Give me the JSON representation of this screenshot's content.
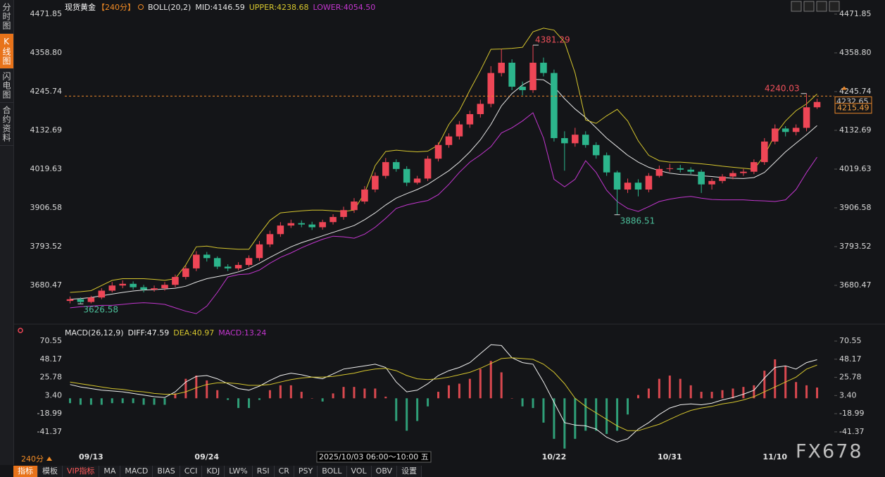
{
  "sidebar": [
    "分时图",
    "K线图",
    "闪电图",
    "合约资料"
  ],
  "toolbar": [
    "指标",
    "模板",
    "VIP指标",
    "MA",
    "MACD",
    "BIAS",
    "CCI",
    "KDJ",
    "LW%",
    "RSI",
    "CR",
    "PSY",
    "BOLL",
    "VOL",
    "OBV",
    "设置"
  ],
  "period_selector": "240分",
  "watermark": "FX678",
  "chart_data": [
    {
      "type": "candlestick",
      "title": "现货黄金",
      "period": "【240分】",
      "indicator": "BOLL(20,2)",
      "categories": [
        null,
        null,
        "09/13",
        null,
        null,
        null,
        null,
        null,
        null,
        null,
        null,
        null,
        null,
        "09/24",
        null,
        null,
        null,
        null,
        null,
        null,
        null,
        null,
        null,
        null,
        null,
        null,
        null,
        null,
        null,
        null,
        null,
        null,
        null,
        null,
        null,
        null,
        null,
        null,
        null,
        null,
        null,
        null,
        null,
        null,
        null,
        null,
        "10/22",
        null,
        null,
        null,
        null,
        null,
        null,
        null,
        null,
        null,
        null,
        "10/31",
        null,
        null,
        null,
        null,
        null,
        null,
        null,
        null,
        null,
        "11/10",
        null,
        null,
        null,
        null
      ],
      "open": [
        3635,
        3640,
        3632,
        3645,
        3665,
        3680,
        3685,
        3675,
        3668,
        3672,
        3682,
        3705,
        3730,
        3770,
        3760,
        3735,
        3730,
        3740,
        3760,
        3800,
        3830,
        3855,
        3862,
        3858,
        3850,
        3865,
        3880,
        3900,
        3925,
        3960,
        4000,
        4040,
        4020,
        3980,
        3992,
        4050,
        4090,
        4115,
        4150,
        4180,
        4210,
        4300,
        4330,
        4260,
        4250,
        4330,
        4300,
        4110,
        4095,
        4120,
        4090,
        4060,
        4010,
        3960,
        3980,
        3960,
        4000,
        4020,
        4022,
        4018,
        4012,
        3975,
        3985,
        3998,
        4008,
        4012,
        4040,
        4100,
        4138,
        4128,
        4140,
        4200
      ],
      "high": [
        3648,
        3645,
        3650,
        3672,
        3690,
        3695,
        3692,
        3682,
        3680,
        3690,
        3712,
        3738,
        3780,
        3778,
        3765,
        3742,
        3748,
        3768,
        3810,
        3840,
        3865,
        3872,
        3870,
        3866,
        3872,
        3888,
        3910,
        3935,
        3970,
        4010,
        4052,
        4048,
        4028,
        4000,
        4058,
        4098,
        4124,
        4160,
        4190,
        4222,
        4320,
        4370,
        4340,
        4275,
        4381.29,
        4345,
        4310,
        4130,
        4140,
        4130,
        4098,
        4068,
        4015,
        3992,
        3990,
        4008,
        4030,
        4035,
        4032,
        4025,
        4018,
        3992,
        4005,
        4015,
        4020,
        4048,
        4110,
        4150,
        4145,
        4150,
        4240.03,
        4225
      ],
      "low": [
        3628,
        3626.58,
        3628,
        3640,
        3660,
        3672,
        3668,
        3660,
        3662,
        3665,
        3675,
        3698,
        3722,
        3750,
        3728,
        3722,
        3724,
        3735,
        3752,
        3792,
        3822,
        3848,
        3850,
        3842,
        3843,
        3858,
        3872,
        3892,
        3918,
        3952,
        3992,
        4012,
        3970,
        3975,
        3985,
        4042,
        4082,
        4106,
        4140,
        4170,
        4200,
        4290,
        4250,
        4235,
        4242,
        4290,
        4100,
        4015,
        4085,
        4082,
        4050,
        4000,
        3886.51,
        3950,
        3940,
        3952,
        3995,
        4012,
        4010,
        4005,
        3950,
        3960,
        3978,
        3990,
        4000,
        4005,
        4032,
        4092,
        4115,
        4118,
        4130,
        4195
      ],
      "close": [
        3640,
        3632,
        3645,
        3665,
        3680,
        3685,
        3675,
        3668,
        3672,
        3682,
        3705,
        3730,
        3770,
        3760,
        3735,
        3730,
        3740,
        3760,
        3800,
        3830,
        3855,
        3862,
        3858,
        3850,
        3865,
        3880,
        3900,
        3925,
        3960,
        4000,
        4040,
        4020,
        3980,
        3992,
        4050,
        4090,
        4115,
        4150,
        4180,
        4210,
        4300,
        4330,
        4260,
        4250,
        4330,
        4300,
        4110,
        4095,
        4120,
        4090,
        4060,
        4010,
        3960,
        3980,
        3960,
        4000,
        4020,
        4022,
        4018,
        4012,
        3975,
        3985,
        3998,
        4008,
        4012,
        4040,
        4100,
        4138,
        4128,
        4140,
        4200,
        4215.49
      ],
      "up_color": "#ee4656",
      "down_color": "#2cb58c",
      "series": [
        {
          "name": "MID:4146.59",
          "color": "#e6e6e6",
          "values": [
            3640,
            3642,
            3645,
            3650,
            3655,
            3660,
            3664,
            3667,
            3668,
            3670,
            3672,
            3678,
            3690,
            3700,
            3706,
            3712,
            3720,
            3730,
            3745,
            3762,
            3778,
            3793,
            3805,
            3815,
            3825,
            3835,
            3845,
            3855,
            3872,
            3892,
            3915,
            3935,
            3948,
            3960,
            3975,
            3995,
            4015,
            4040,
            4070,
            4105,
            4150,
            4204,
            4240,
            4265,
            4282,
            4280,
            4260,
            4225,
            4195,
            4170,
            4140,
            4110,
            4085,
            4060,
            4040,
            4025,
            4015,
            4008,
            4004,
            4003,
            4000,
            3998,
            3995,
            3993,
            3992,
            3995,
            4010,
            4040,
            4070,
            4095,
            4120,
            4146.59
          ]
        },
        {
          "name": "UPPER:4238.68",
          "color": "#d6c62e",
          "values": [
            3660,
            3662,
            3665,
            3680,
            3695,
            3700,
            3700,
            3700,
            3698,
            3695,
            3700,
            3740,
            3793,
            3795,
            3790,
            3788,
            3786,
            3786,
            3830,
            3870,
            3892,
            3895,
            3898,
            3900,
            3900,
            3898,
            3896,
            3900,
            3950,
            4030,
            4071,
            4075,
            4072,
            4070,
            4072,
            4090,
            4150,
            4190,
            4250,
            4307,
            4369,
            4370,
            4372,
            4375,
            4420,
            4431,
            4425,
            4390,
            4300,
            4163,
            4153,
            4175,
            4194,
            4160,
            4102,
            4060,
            4044,
            4040,
            4040,
            4038,
            4035,
            4032,
            4028,
            4025,
            4022,
            4019,
            4060,
            4120,
            4160,
            4190,
            4210,
            4238.68
          ]
        },
        {
          "name": "LOWER:4054.50",
          "color": "#c336cf",
          "values": [
            3615,
            3618,
            3620,
            3622,
            3622,
            3625,
            3628,
            3630,
            3628,
            3625,
            3615,
            3605,
            3598,
            3620,
            3660,
            3705,
            3712,
            3714,
            3725,
            3745,
            3762,
            3775,
            3790,
            3803,
            3815,
            3824,
            3822,
            3818,
            3830,
            3850,
            3876,
            3905,
            3915,
            3922,
            3928,
            3945,
            3975,
            4010,
            4040,
            4061,
            4085,
            4125,
            4140,
            4160,
            4184,
            4110,
            3990,
            3968,
            3990,
            4044,
            4010,
            3958,
            3925,
            3905,
            3896,
            3910,
            3925,
            3932,
            3937,
            3940,
            3935,
            3931,
            3930,
            3930,
            3930,
            3928,
            3927,
            3925,
            3930,
            3960,
            4010,
            4054.5
          ]
        }
      ],
      "ylim": [
        3577.7,
        4496.5
      ],
      "yticks": [
        4471.85,
        {
          "value": 4358.8,
          "label": "4358.80"
        },
        4245.74,
        4132.69,
        4019.63,
        3906.58,
        3793.52,
        3680.47
      ],
      "grid": false,
      "price_line": 4232.65,
      "last_price": 4215.49,
      "cursor_label": "2025/10/03 06:00～10:00 五"
    },
    {
      "type": "macd",
      "title": "MACD(26,12,9)",
      "series": [
        {
          "name": "DIFF:47.59",
          "color": "#f2f2f2",
          "values": [
            17,
            14,
            12,
            10,
            9,
            8,
            6,
            4,
            2,
            1,
            8,
            20,
            27,
            28,
            24,
            18,
            12,
            10,
            15,
            22,
            28,
            31,
            29,
            26,
            24,
            30,
            36,
            38,
            40,
            42,
            38,
            20,
            8,
            10,
            18,
            28,
            34,
            38,
            44,
            55,
            66,
            65,
            50,
            44,
            42,
            20,
            -5,
            -30,
            -33,
            -34,
            -38,
            -48,
            -54,
            -50,
            -38,
            -30,
            -20,
            -12,
            -8,
            -7,
            -8,
            -6,
            -2,
            1,
            5,
            10,
            25,
            38,
            40,
            36,
            44,
            47.59
          ]
        },
        {
          "name": "DEA:40.97",
          "color": "#d6c62e",
          "values": [
            20,
            18,
            16,
            14,
            12,
            11,
            9,
            8,
            6,
            5,
            5,
            8,
            13,
            17,
            19,
            19,
            18,
            16,
            16,
            17,
            20,
            23,
            25,
            26,
            26,
            27,
            29,
            31,
            34,
            36,
            37,
            34,
            28,
            24,
            23,
            24,
            26,
            29,
            32,
            37,
            43,
            49,
            50,
            49,
            48,
            42,
            32,
            18,
            0,
            -10,
            -18,
            -26,
            -34,
            -40,
            -40,
            -36,
            -32,
            -26,
            -20,
            -15,
            -12,
            -10,
            -7,
            -5,
            -2,
            2,
            8,
            14,
            20,
            26,
            36,
            40.97
          ]
        },
        {
          "name": "MACD:13.24",
          "type": "bar",
          "color": "#c336cf",
          "up_color": "#d9484f",
          "down_color": "#2f9f78",
          "values": [
            -6,
            -8,
            -8,
            -8,
            -6,
            -6,
            -6,
            -8,
            -8,
            -8,
            6,
            24,
            28,
            22,
            10,
            -2,
            -12,
            -12,
            -2,
            10,
            16,
            16,
            8,
            0,
            -4,
            6,
            14,
            14,
            12,
            12,
            2,
            -28,
            -40,
            -28,
            -10,
            8,
            16,
            18,
            24,
            36,
            46,
            32,
            0,
            -10,
            -12,
            -30,
            -50,
            -62,
            -50,
            -40,
            -40,
            -44,
            -40,
            -20,
            4,
            12,
            24,
            28,
            24,
            16,
            8,
            8,
            10,
            12,
            14,
            16,
            34,
            48,
            40,
            20,
            16,
            13.24
          ]
        }
      ],
      "ylim": [
        -64.9,
        75.8
      ],
      "yticks": [
        70.55,
        48.17,
        25.78,
        {
          "value": 3.4,
          "label": "3.40"
        },
        -18.99,
        -41.37
      ],
      "grid": false
    }
  ]
}
